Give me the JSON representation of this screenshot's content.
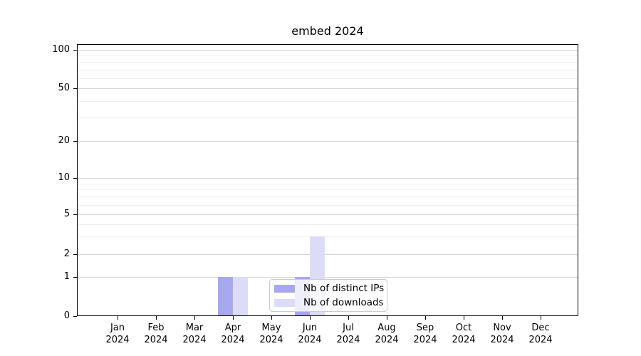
{
  "chart_data": {
    "type": "bar",
    "title": "embed 2024",
    "categories": [
      "Jan",
      "Feb",
      "Mar",
      "Apr",
      "May",
      "Jun",
      "Jul",
      "Aug",
      "Sep",
      "Oct",
      "Nov",
      "Dec"
    ],
    "category_year": "2024",
    "series": [
      {
        "name": "Nb of distinct IPs",
        "color": "#a8a8f0",
        "values": [
          0,
          0,
          0,
          1,
          0,
          1,
          0,
          0,
          0,
          0,
          0,
          0
        ]
      },
      {
        "name": "Nb of downloads",
        "color": "#dcdcf8",
        "values": [
          0,
          0,
          0,
          1,
          0,
          3,
          0,
          0,
          0,
          0,
          0,
          0
        ]
      }
    ],
    "xlabel": "",
    "ylabel": "",
    "yscale": "symlog",
    "yticks": [
      0,
      1,
      2,
      5,
      10,
      20,
      50,
      100
    ],
    "minor_yticks": [
      3,
      4,
      6,
      7,
      8,
      9,
      30,
      40,
      60,
      70,
      80,
      90
    ],
    "ylim": [
      0,
      110
    ],
    "grid": true,
    "legend_position": "lower center"
  }
}
